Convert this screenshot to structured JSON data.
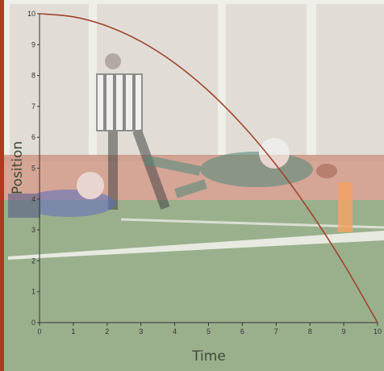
{
  "chart_data": {
    "type": "line",
    "xlabel": "Time",
    "ylabel": "Position",
    "xlim": [
      0,
      10
    ],
    "ylim": [
      0,
      10
    ],
    "xticks": [
      "0",
      "1",
      "2",
      "3",
      "4",
      "5",
      "6",
      "7",
      "8",
      "9",
      "10"
    ],
    "yticks": [
      "0",
      "1",
      "2",
      "3",
      "4",
      "5",
      "6",
      "7",
      "8",
      "9",
      "10"
    ],
    "grid": false,
    "series": [
      {
        "color": "#a0442e",
        "x": [
          0,
          1,
          2,
          3,
          4,
          5,
          6,
          7,
          8,
          9,
          10
        ],
        "y": [
          10,
          9.9,
          9.6,
          9.1,
          8.4,
          7.5,
          6.4,
          5.1,
          3.6,
          1.9,
          0
        ]
      }
    ]
  },
  "colors": {
    "accent_bar": "#b03a1e",
    "sky": "#ece9e2",
    "stands": "#d9d4cb",
    "track": "#b8654c",
    "field": "#7e9a6c",
    "field_line": "#f2f2ec",
    "curve": "#a0442e",
    "axis": "#333333"
  },
  "background_icon": "football-touchdown-photo"
}
